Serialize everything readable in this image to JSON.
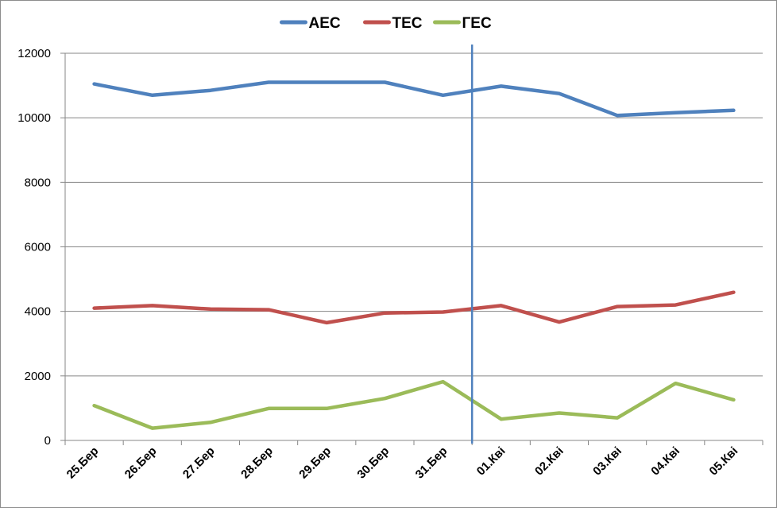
{
  "chart_data": {
    "type": "line",
    "title": "",
    "xlabel": "",
    "ylabel": "",
    "categories": [
      "25.Бер",
      "26.Бер",
      "27.Бер",
      "28.Бер",
      "29.Бер",
      "30.Бер",
      "31.Бер",
      "01.Кві",
      "02.Кві",
      "03.Кві",
      "04.Кві",
      "05.Кві"
    ],
    "ylim": [
      0,
      12000
    ],
    "yticks": [
      0,
      2000,
      4000,
      6000,
      8000,
      10000,
      12000
    ],
    "ytick_labels": [
      "0",
      "2000",
      "4000",
      "6000",
      "8000",
      "10000",
      "12000"
    ],
    "grid": true,
    "legend_position": "top",
    "series": [
      {
        "name": "АЕС",
        "color": "#4f81bd",
        "values": [
          11050,
          10700,
          10850,
          11100,
          11100,
          11100,
          10700,
          10980,
          10750,
          10070,
          10160,
          10230
        ]
      },
      {
        "name": "ТЕС",
        "color": "#c0504d",
        "values": [
          4100,
          4180,
          4070,
          4050,
          3650,
          3950,
          3980,
          4180,
          3670,
          4150,
          4200,
          4590
        ]
      },
      {
        "name": "ГЕС",
        "color": "#9bbb59",
        "values": [
          1080,
          380,
          560,
          990,
          990,
          1300,
          1820,
          660,
          850,
          700,
          1770,
          1260
        ]
      }
    ],
    "marker_line": {
      "between": [
        "31.Бер",
        "01.Кві"
      ],
      "color": "#4f81bd"
    }
  }
}
